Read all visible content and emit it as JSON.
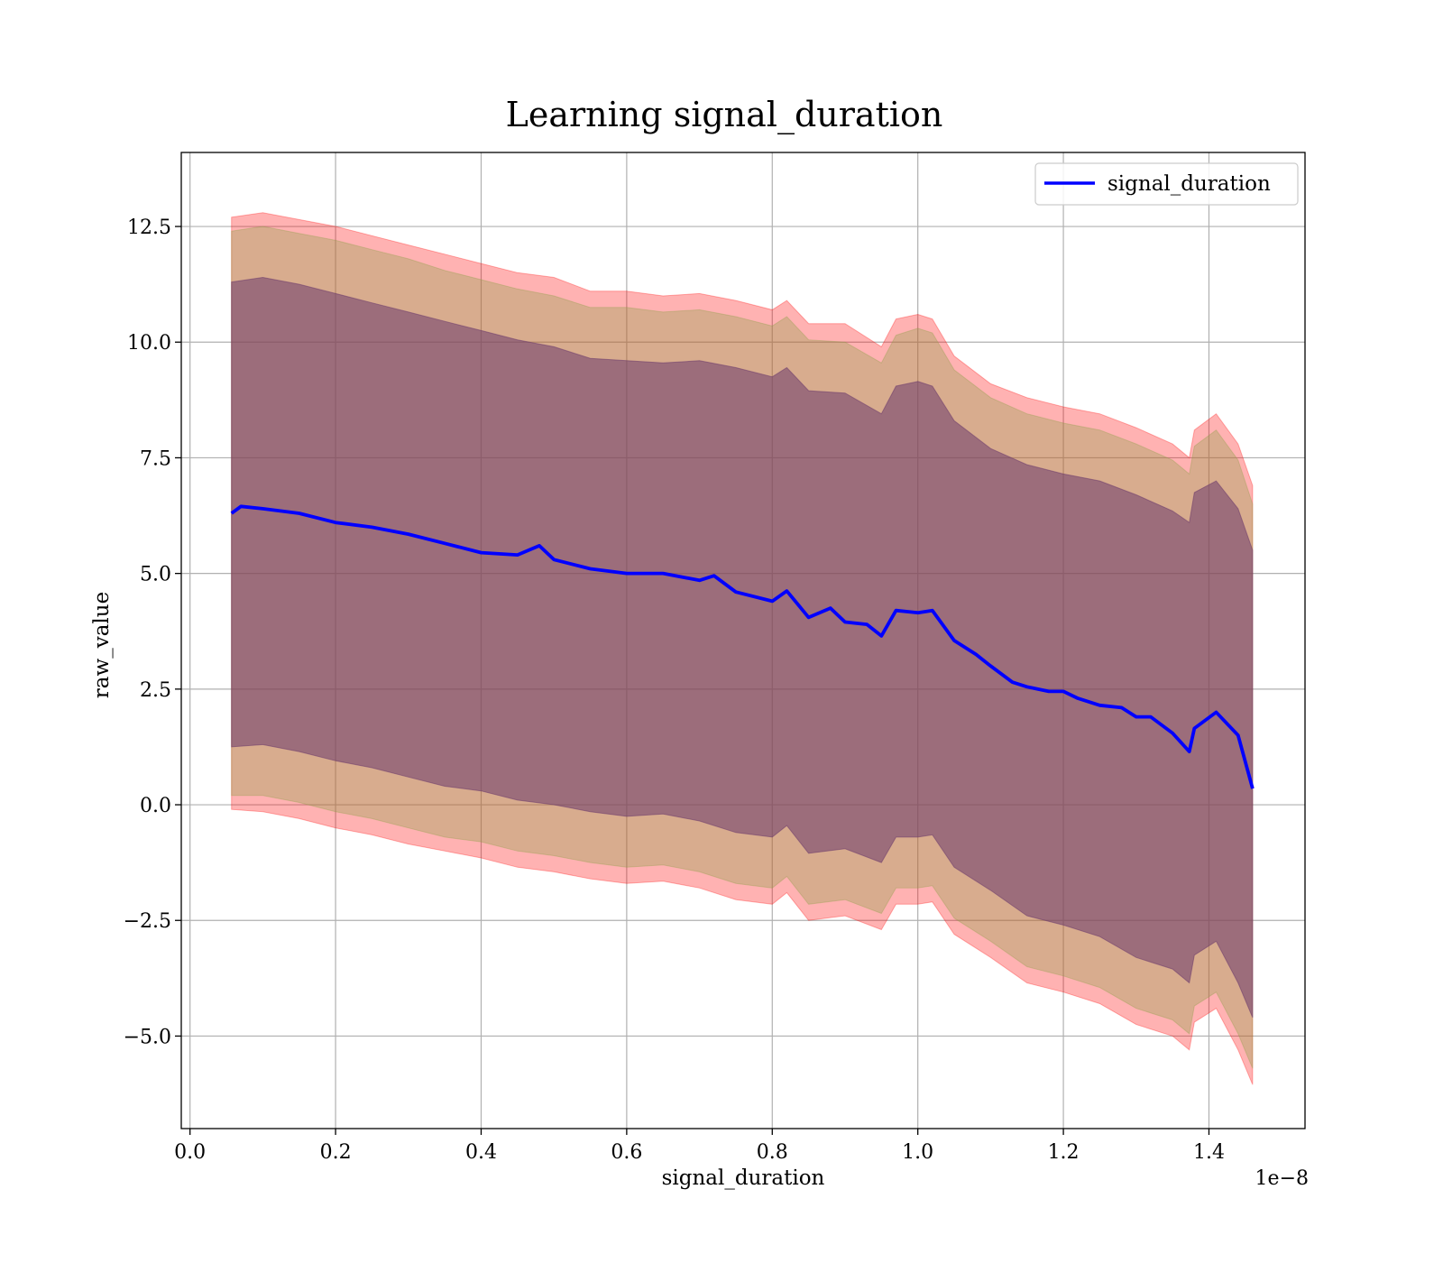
{
  "chart_data": {
    "type": "line",
    "title": "Learning signal_duration",
    "xlabel": "signal_duration",
    "ylabel": "raw_value",
    "x_offset_label": "1e−8",
    "xlim": [
      -0.012,
      1.532
    ],
    "ylim": [
      -7.0,
      14.1
    ],
    "x_ticks": [
      0.0,
      0.2,
      0.4,
      0.6,
      0.8,
      1.0,
      1.2,
      1.4
    ],
    "x_tick_labels": [
      "0.0",
      "0.2",
      "0.4",
      "0.6",
      "0.8",
      "1.0",
      "1.2",
      "1.4"
    ],
    "y_ticks": [
      -5.0,
      -2.5,
      0.0,
      2.5,
      5.0,
      7.5,
      10.0,
      12.5
    ],
    "y_tick_labels": [
      "−5.0",
      "−2.5",
      "0.0",
      "2.5",
      "5.0",
      "7.5",
      "10.0",
      "12.5"
    ],
    "grid": true,
    "legend_position": "top-right",
    "series": [
      {
        "name": "signal_duration",
        "color": "#0000ff",
        "x": [
          0.057,
          0.07,
          0.1,
          0.15,
          0.2,
          0.25,
          0.3,
          0.35,
          0.4,
          0.45,
          0.48,
          0.5,
          0.55,
          0.6,
          0.65,
          0.7,
          0.72,
          0.75,
          0.8,
          0.82,
          0.85,
          0.88,
          0.9,
          0.93,
          0.95,
          0.97,
          1.0,
          1.02,
          1.05,
          1.08,
          1.1,
          1.13,
          1.15,
          1.18,
          1.2,
          1.22,
          1.25,
          1.28,
          1.3,
          1.32,
          1.35,
          1.373,
          1.38,
          1.41,
          1.44,
          1.46
        ],
        "values": [
          6.3,
          6.45,
          6.4,
          6.3,
          6.1,
          6.0,
          5.85,
          5.65,
          5.45,
          5.4,
          5.6,
          5.3,
          5.1,
          5.0,
          5.0,
          4.85,
          4.95,
          4.6,
          4.4,
          4.62,
          4.05,
          4.25,
          3.95,
          3.9,
          3.65,
          4.2,
          4.15,
          4.2,
          3.55,
          3.25,
          3.0,
          2.65,
          2.55,
          2.45,
          2.45,
          2.3,
          2.15,
          2.1,
          1.9,
          1.9,
          1.55,
          1.15,
          1.65,
          2.0,
          1.5,
          0.35
        ]
      }
    ],
    "bands": [
      {
        "x": [
          0.057,
          0.1,
          0.15,
          0.2,
          0.25,
          0.3,
          0.35,
          0.4,
          0.45,
          0.5,
          0.55,
          0.6,
          0.65,
          0.7,
          0.75,
          0.8,
          0.82,
          0.85,
          0.9,
          0.95,
          0.97,
          1.0,
          1.02,
          1.05,
          1.1,
          1.15,
          1.2,
          1.25,
          1.3,
          1.35,
          1.373,
          1.38,
          1.41,
          1.44,
          1.46
        ],
        "upper": [
          12.7,
          12.8,
          12.65,
          12.5,
          12.3,
          12.1,
          11.9,
          11.7,
          11.5,
          11.4,
          11.1,
          11.1,
          11.0,
          11.05,
          10.9,
          10.7,
          10.9,
          10.4,
          10.4,
          9.9,
          10.5,
          10.6,
          10.5,
          9.7,
          9.1,
          8.8,
          8.6,
          8.45,
          8.15,
          7.8,
          7.5,
          8.1,
          8.45,
          7.8,
          6.9
        ],
        "lower": [
          -0.1,
          -0.15,
          -0.3,
          -0.5,
          -0.65,
          -0.85,
          -1.0,
          -1.15,
          -1.35,
          -1.45,
          -1.6,
          -1.7,
          -1.65,
          -1.8,
          -2.05,
          -2.15,
          -1.9,
          -2.5,
          -2.4,
          -2.7,
          -2.15,
          -2.15,
          -2.1,
          -2.8,
          -3.3,
          -3.85,
          -4.05,
          -4.3,
          -4.75,
          -5.0,
          -5.3,
          -4.7,
          -4.4,
          -5.3,
          -6.05
        ],
        "fill": "#ff0000",
        "opacity": 0.3
      },
      {
        "x": [
          0.057,
          0.1,
          0.15,
          0.2,
          0.25,
          0.3,
          0.35,
          0.4,
          0.45,
          0.5,
          0.55,
          0.6,
          0.65,
          0.7,
          0.75,
          0.8,
          0.82,
          0.85,
          0.9,
          0.95,
          0.97,
          1.0,
          1.02,
          1.05,
          1.1,
          1.15,
          1.2,
          1.25,
          1.3,
          1.35,
          1.373,
          1.38,
          1.41,
          1.44,
          1.46
        ],
        "upper": [
          12.4,
          12.5,
          12.35,
          12.2,
          12.0,
          11.8,
          11.55,
          11.35,
          11.15,
          11.0,
          10.75,
          10.75,
          10.65,
          10.7,
          10.55,
          10.35,
          10.55,
          10.05,
          10.0,
          9.55,
          10.15,
          10.3,
          10.2,
          9.4,
          8.8,
          8.45,
          8.25,
          8.1,
          7.8,
          7.45,
          7.15,
          7.75,
          8.1,
          7.45,
          6.5
        ],
        "lower": [
          0.2,
          0.2,
          0.05,
          -0.15,
          -0.3,
          -0.5,
          -0.7,
          -0.8,
          -1.0,
          -1.1,
          -1.25,
          -1.35,
          -1.3,
          -1.45,
          -1.7,
          -1.8,
          -1.55,
          -2.15,
          -2.05,
          -2.35,
          -1.8,
          -1.8,
          -1.75,
          -2.45,
          -2.95,
          -3.5,
          -3.7,
          -3.95,
          -4.4,
          -4.65,
          -4.95,
          -4.35,
          -4.05,
          -4.95,
          -5.7
        ],
        "fill": "#8fa04a",
        "opacity": 0.35
      },
      {
        "x": [
          0.057,
          0.1,
          0.15,
          0.2,
          0.25,
          0.3,
          0.35,
          0.4,
          0.45,
          0.5,
          0.55,
          0.6,
          0.65,
          0.7,
          0.75,
          0.8,
          0.82,
          0.85,
          0.9,
          0.95,
          0.97,
          1.0,
          1.02,
          1.05,
          1.1,
          1.15,
          1.2,
          1.25,
          1.3,
          1.35,
          1.373,
          1.38,
          1.41,
          1.44,
          1.46
        ],
        "upper": [
          11.3,
          11.4,
          11.25,
          11.05,
          10.85,
          10.65,
          10.45,
          10.25,
          10.05,
          9.9,
          9.65,
          9.6,
          9.55,
          9.6,
          9.45,
          9.25,
          9.45,
          8.95,
          8.9,
          8.45,
          9.05,
          9.15,
          9.05,
          8.3,
          7.7,
          7.35,
          7.15,
          7.0,
          6.7,
          6.35,
          6.1,
          6.75,
          7.0,
          6.4,
          5.5
        ],
        "lower": [
          1.25,
          1.3,
          1.15,
          0.95,
          0.8,
          0.6,
          0.4,
          0.3,
          0.1,
          0.0,
          -0.15,
          -0.25,
          -0.2,
          -0.35,
          -0.6,
          -0.7,
          -0.45,
          -1.05,
          -0.95,
          -1.25,
          -0.7,
          -0.7,
          -0.65,
          -1.35,
          -1.85,
          -2.4,
          -2.6,
          -2.85,
          -3.3,
          -3.55,
          -3.85,
          -3.25,
          -2.95,
          -3.85,
          -4.6
        ],
        "fill": "#6b3a6b",
        "opacity": 0.55
      }
    ]
  }
}
